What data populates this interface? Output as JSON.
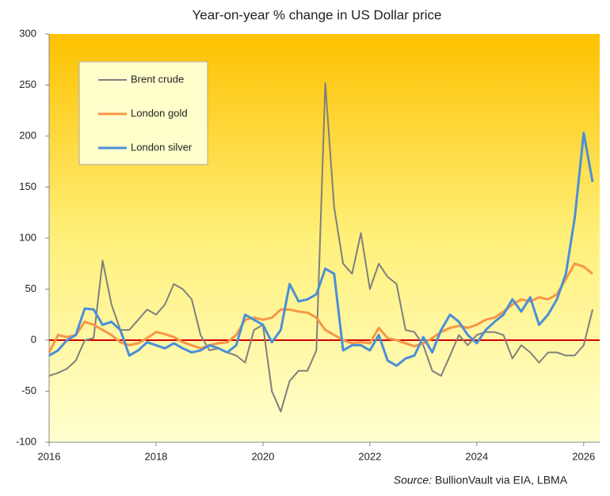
{
  "chart_data": {
    "type": "line",
    "title": "Year-on-year  % change in US Dollar price",
    "source_label": "Source:",
    "source": "BullionVault via EIA, LBMA",
    "x": [
      2016,
      2016.167,
      2016.333,
      2016.5,
      2016.667,
      2016.833,
      2017,
      2017.167,
      2017.333,
      2017.5,
      2017.667,
      2017.833,
      2018,
      2018.167,
      2018.333,
      2018.5,
      2018.667,
      2018.833,
      2019,
      2019.167,
      2019.333,
      2019.5,
      2019.667,
      2019.833,
      2020,
      2020.167,
      2020.333,
      2020.5,
      2020.667,
      2020.833,
      2021,
      2021.167,
      2021.333,
      2021.5,
      2021.667,
      2021.833,
      2022,
      2022.167,
      2022.333,
      2022.5,
      2022.667,
      2022.833,
      2023,
      2023.167,
      2023.333,
      2023.5,
      2023.667,
      2023.833,
      2024,
      2024.167,
      2024.333,
      2024.5,
      2024.667,
      2024.833,
      2025,
      2025.167,
      2025.333,
      2025.5,
      2025.667,
      2025.833,
      2026,
      2026.167
    ],
    "series": [
      {
        "name": "Brent crude",
        "color": "#7f7f7f",
        "values": [
          -35,
          -32,
          -28,
          -20,
          0,
          2,
          78,
          35,
          10,
          10,
          20,
          30,
          25,
          35,
          55,
          50,
          40,
          5,
          -10,
          -8,
          -12,
          -15,
          -22,
          10,
          15,
          -50,
          -70,
          -40,
          -30,
          -30,
          -10,
          252,
          130,
          75,
          65,
          105,
          50,
          75,
          62,
          55,
          10,
          8,
          -5,
          -30,
          -35,
          -15,
          5,
          -5,
          5,
          8,
          8,
          5,
          -18,
          -5,
          -12,
          -22,
          -12,
          -12,
          -15,
          -15,
          -5,
          30
        ]
      },
      {
        "name": "London gold",
        "color": "#f79646",
        "values": [
          -12,
          5,
          3,
          5,
          18,
          15,
          10,
          5,
          -2,
          -5,
          -3,
          2,
          8,
          6,
          3,
          -2,
          -5,
          -8,
          -5,
          -3,
          -2,
          5,
          20,
          22,
          20,
          22,
          30,
          30,
          28,
          27,
          22,
          10,
          5,
          0,
          -3,
          -2,
          -3,
          12,
          2,
          0,
          -3,
          -6,
          -3,
          2,
          8,
          12,
          14,
          12,
          15,
          20,
          22,
          28,
          35,
          40,
          38,
          42,
          40,
          45,
          60,
          75,
          72,
          65
        ]
      },
      {
        "name": "London silver",
        "color": "#4a8fd8",
        "values": [
          -15,
          -10,
          0,
          5,
          31,
          30,
          15,
          18,
          10,
          -15,
          -10,
          -2,
          -5,
          -8,
          -3,
          -8,
          -12,
          -10,
          -5,
          -8,
          -12,
          -5,
          25,
          20,
          15,
          -2,
          10,
          55,
          38,
          40,
          45,
          70,
          65,
          -10,
          -5,
          -5,
          -10,
          5,
          -20,
          -25,
          -18,
          -15,
          3,
          -12,
          10,
          25,
          18,
          5,
          -3,
          10,
          18,
          25,
          40,
          28,
          42,
          15,
          25,
          40,
          65,
          120,
          203,
          155
        ]
      }
    ],
    "xlim": [
      2016,
      2026.3
    ],
    "xticks": [
      2016,
      2018,
      2020,
      2022,
      2024,
      2026
    ],
    "ylim": [
      -100,
      300
    ],
    "yticks": [
      -100,
      -50,
      0,
      50,
      100,
      150,
      200,
      250,
      300
    ],
    "zero_line_color": "#d00000"
  }
}
